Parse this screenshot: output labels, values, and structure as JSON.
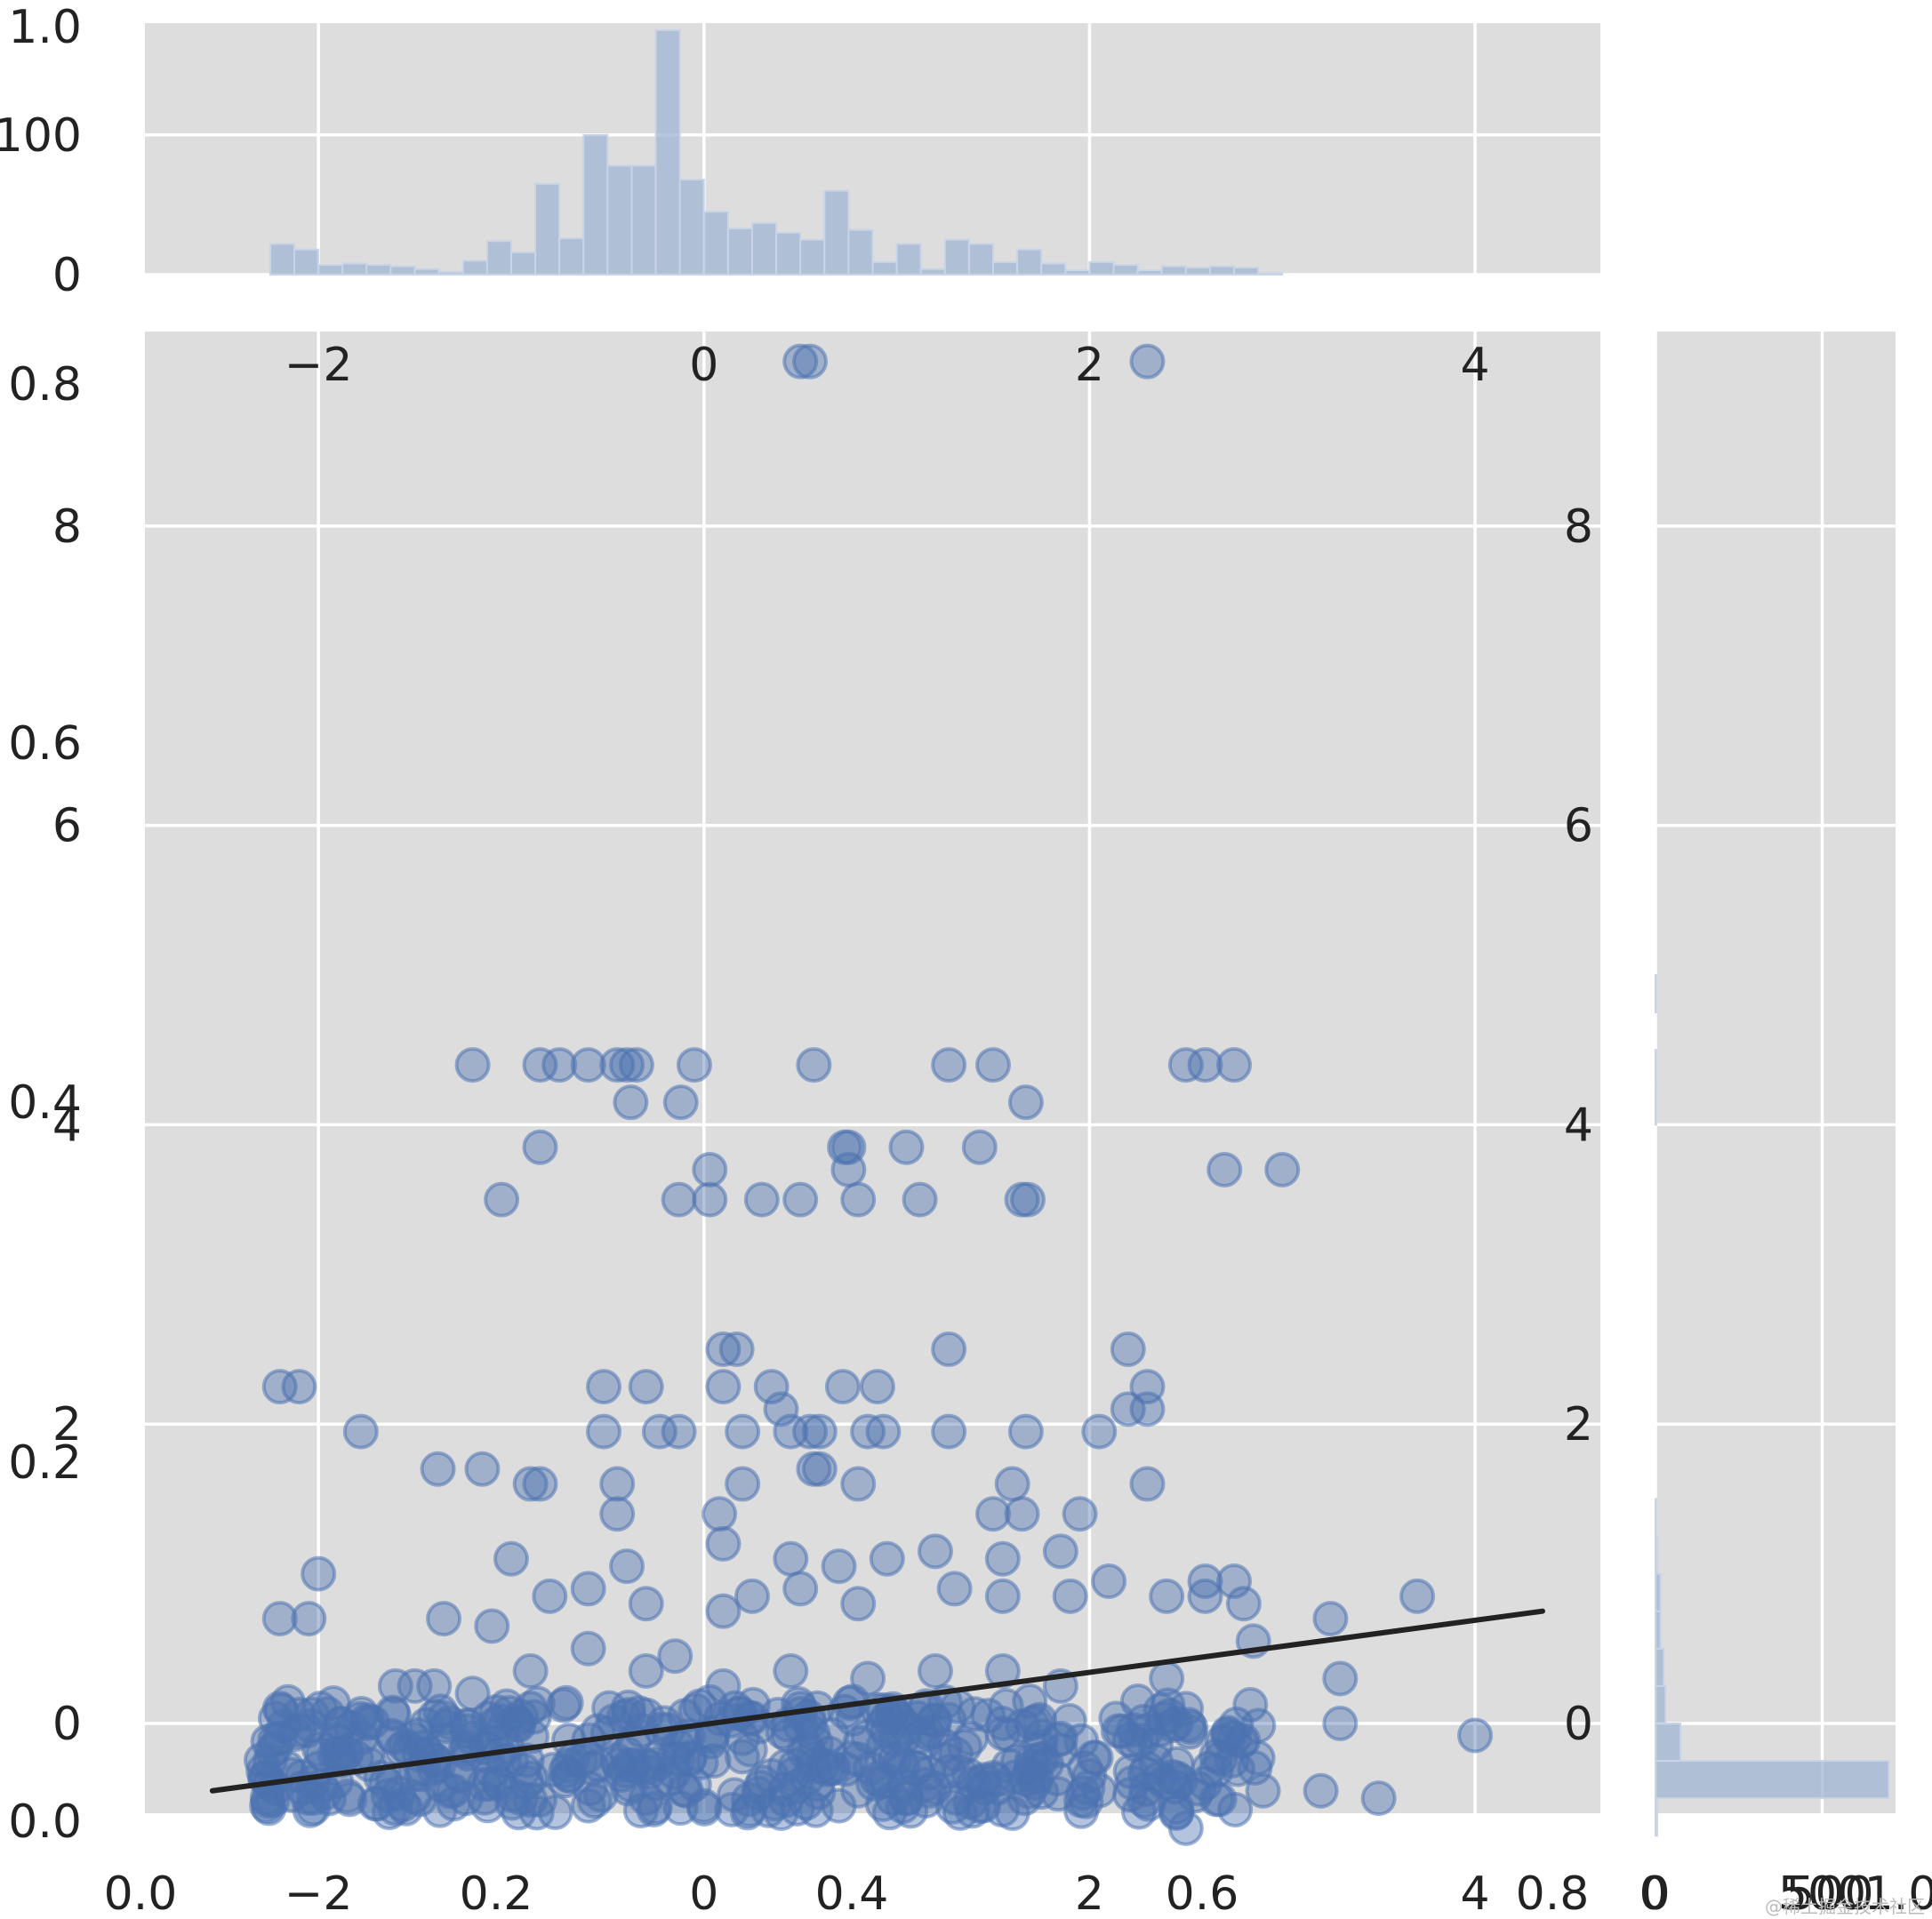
{
  "chart_data": {
    "type": "scatter",
    "title": "",
    "xlabel": "",
    "ylabel": "",
    "legend": "none",
    "grid": true,
    "xlim": [
      -2.9,
      4.65
    ],
    "ylim": [
      -0.6,
      9.3
    ],
    "x_ticks": [
      "−2",
      "0",
      "2",
      "4"
    ],
    "x_tick_values": [
      -2,
      0,
      2,
      4
    ],
    "y_ticks": [
      "0",
      "2",
      "4",
      "6",
      "8"
    ],
    "y_tick_values": [
      0,
      2,
      4,
      6,
      8
    ],
    "overlay_ticks": {
      "left_axis": [
        "0.0",
        "0.2",
        "0.4",
        "0.6",
        "0.8",
        "1.0"
      ],
      "bottom_axis": [
        "0.0",
        "0.2",
        "0.4",
        "0.6",
        "0.8"
      ],
      "right_axis": [
        "0",
        "500",
        "1.0"
      ]
    },
    "scatter_points": [
      [
        0.5,
        9.1
      ],
      [
        0.55,
        9.1
      ],
      [
        2.3,
        9.1
      ],
      [
        -1.2,
        4.4
      ],
      [
        -0.85,
        4.4
      ],
      [
        -0.75,
        4.4
      ],
      [
        -0.6,
        4.4
      ],
      [
        -0.45,
        4.4
      ],
      [
        -0.4,
        4.4
      ],
      [
        -0.35,
        4.4
      ],
      [
        -0.05,
        4.4
      ],
      [
        0.57,
        4.4
      ],
      [
        1.27,
        4.4
      ],
      [
        1.5,
        4.4
      ],
      [
        2.5,
        4.4
      ],
      [
        2.6,
        4.4
      ],
      [
        2.75,
        4.4
      ],
      [
        -0.38,
        4.15
      ],
      [
        -0.12,
        4.15
      ],
      [
        1.67,
        4.15
      ],
      [
        -0.85,
        3.85
      ],
      [
        0.73,
        3.85
      ],
      [
        0.75,
        3.85
      ],
      [
        1.05,
        3.85
      ],
      [
        1.43,
        3.85
      ],
      [
        0.03,
        3.7
      ],
      [
        0.75,
        3.7
      ],
      [
        2.7,
        3.7
      ],
      [
        3.0,
        3.7
      ],
      [
        -1.05,
        3.5
      ],
      [
        -0.13,
        3.5
      ],
      [
        0.03,
        3.5
      ],
      [
        0.3,
        3.5
      ],
      [
        0.5,
        3.5
      ],
      [
        0.8,
        3.5
      ],
      [
        1.12,
        3.5
      ],
      [
        1.65,
        3.5
      ],
      [
        1.68,
        3.5
      ],
      [
        0.1,
        2.5
      ],
      [
        0.17,
        2.5
      ],
      [
        1.27,
        2.5
      ],
      [
        2.2,
        2.5
      ],
      [
        -2.2,
        2.25
      ],
      [
        -2.1,
        2.25
      ],
      [
        -0.52,
        2.25
      ],
      [
        -0.3,
        2.25
      ],
      [
        0.1,
        2.25
      ],
      [
        0.35,
        2.25
      ],
      [
        0.72,
        2.25
      ],
      [
        0.9,
        2.25
      ],
      [
        2.3,
        2.25
      ],
      [
        0.4,
        2.1
      ],
      [
        2.2,
        2.1
      ],
      [
        2.3,
        2.1
      ],
      [
        -1.78,
        1.95
      ],
      [
        -0.52,
        1.95
      ],
      [
        -0.23,
        1.95
      ],
      [
        -0.13,
        1.95
      ],
      [
        0.2,
        1.95
      ],
      [
        0.45,
        1.95
      ],
      [
        0.55,
        1.95
      ],
      [
        0.6,
        1.95
      ],
      [
        0.85,
        1.95
      ],
      [
        0.93,
        1.95
      ],
      [
        1.27,
        1.95
      ],
      [
        1.67,
        1.95
      ],
      [
        2.05,
        1.95
      ],
      [
        -1.38,
        1.7
      ],
      [
        -1.15,
        1.7
      ],
      [
        0.57,
        1.7
      ],
      [
        0.6,
        1.7
      ],
      [
        -0.9,
        1.6
      ],
      [
        -0.85,
        1.6
      ],
      [
        -0.45,
        1.6
      ],
      [
        0.2,
        1.6
      ],
      [
        0.8,
        1.6
      ],
      [
        1.6,
        1.6
      ],
      [
        2.3,
        1.6
      ],
      [
        -0.45,
        1.4
      ],
      [
        0.08,
        1.4
      ],
      [
        1.5,
        1.4
      ],
      [
        1.65,
        1.4
      ],
      [
        1.95,
        1.4
      ],
      [
        -2.0,
        1.0
      ],
      [
        -1.0,
        1.1
      ],
      [
        -0.4,
        1.05
      ],
      [
        0.1,
        1.2
      ],
      [
        0.45,
        1.1
      ],
      [
        0.7,
        1.05
      ],
      [
        0.95,
        1.1
      ],
      [
        1.2,
        1.15
      ],
      [
        1.55,
        1.1
      ],
      [
        1.85,
        1.15
      ],
      [
        2.1,
        0.95
      ],
      [
        2.6,
        0.95
      ],
      [
        2.75,
        0.95
      ],
      [
        -2.2,
        0.7
      ],
      [
        -2.05,
        0.7
      ],
      [
        -1.35,
        0.7
      ],
      [
        -1.1,
        0.65
      ],
      [
        -0.8,
        0.85
      ],
      [
        -0.6,
        0.9
      ],
      [
        -0.3,
        0.8
      ],
      [
        0.1,
        0.75
      ],
      [
        0.25,
        0.85
      ],
      [
        0.5,
        0.9
      ],
      [
        0.8,
        0.8
      ],
      [
        1.3,
        0.9
      ],
      [
        1.55,
        0.85
      ],
      [
        1.9,
        0.85
      ],
      [
        2.4,
        0.85
      ],
      [
        2.6,
        0.85
      ],
      [
        2.8,
        0.8
      ],
      [
        3.25,
        0.7
      ],
      [
        3.7,
        0.85
      ],
      [
        -1.6,
        0.25
      ],
      [
        -1.5,
        0.25
      ],
      [
        -1.4,
        0.25
      ],
      [
        -1.2,
        0.2
      ],
      [
        -0.9,
        0.35
      ],
      [
        -0.6,
        0.5
      ],
      [
        -0.3,
        0.35
      ],
      [
        -0.15,
        0.45
      ],
      [
        0.1,
        0.25
      ],
      [
        0.45,
        0.35
      ],
      [
        0.85,
        0.3
      ],
      [
        1.2,
        0.35
      ],
      [
        1.55,
        0.35
      ],
      [
        1.85,
        0.25
      ],
      [
        2.4,
        0.3
      ],
      [
        2.85,
        0.55
      ],
      [
        3.3,
        0.3
      ],
      [
        3.3,
        0.0
      ],
      [
        4.0,
        -0.08
      ],
      [
        -2.2,
        0.1
      ],
      [
        -2.1,
        -0.05
      ],
      [
        -1.9,
        -0.2
      ],
      [
        -1.75,
        0.0
      ],
      [
        -1.55,
        -0.15
      ],
      [
        -1.4,
        -0.3
      ],
      [
        -1.2,
        -0.1
      ],
      [
        -1.0,
        -0.25
      ],
      [
        -0.9,
        0.1
      ],
      [
        -0.7,
        -0.35
      ],
      [
        -0.55,
        -0.05
      ],
      [
        -0.4,
        -0.2
      ],
      [
        -0.25,
        -0.4
      ],
      [
        -0.1,
        0.05
      ],
      [
        0.05,
        -0.25
      ],
      [
        0.2,
        -0.1
      ],
      [
        0.35,
        -0.35
      ],
      [
        0.5,
        0.1
      ],
      [
        0.65,
        -0.2
      ],
      [
        0.8,
        -0.45
      ],
      [
        0.95,
        -0.05
      ],
      [
        1.1,
        -0.3
      ],
      [
        1.25,
        -0.15
      ],
      [
        1.4,
        -0.4
      ],
      [
        1.55,
        0.0
      ],
      [
        1.7,
        -0.25
      ],
      [
        1.85,
        -0.1
      ],
      [
        2.0,
        -0.35
      ],
      [
        2.15,
        -0.05
      ],
      [
        2.3,
        -0.3
      ],
      [
        2.45,
        0.0
      ],
      [
        2.6,
        -0.4
      ],
      [
        2.75,
        -0.1
      ],
      [
        2.9,
        -0.45
      ],
      [
        3.2,
        -0.45
      ],
      [
        3.5,
        -0.5
      ],
      [
        -2.25,
        -0.25
      ],
      [
        -2.0,
        -0.3
      ],
      [
        -1.65,
        -0.4
      ],
      [
        -1.3,
        -0.45
      ],
      [
        -0.95,
        -0.5
      ],
      [
        -0.6,
        -0.55
      ],
      [
        -0.3,
        -0.5
      ],
      [
        0.0,
        -0.55
      ],
      [
        0.4,
        -0.6
      ],
      [
        0.7,
        -0.55
      ],
      [
        1.05,
        -0.5
      ],
      [
        1.45,
        -0.55
      ],
      [
        1.6,
        -0.6
      ],
      [
        2.45,
        -0.6
      ],
      [
        2.5,
        -0.7
      ]
    ],
    "dense_band": {
      "x_range": [
        -2.3,
        2.9
      ],
      "y_range": [
        -0.6,
        0.15
      ],
      "approx_count": 450
    },
    "regression_line": {
      "x": [
        -2.55,
        4.35
      ],
      "y": [
        -0.45,
        0.75
      ]
    },
    "top_marginal_hist": {
      "y_ticks": [
        "0",
        "100"
      ],
      "y_tick_values": [
        0,
        100
      ],
      "ylim": [
        0,
        180
      ],
      "bin_start": -2.25,
      "bin_width": 0.125,
      "counts": [
        22,
        18,
        7,
        8,
        7,
        6,
        4,
        2,
        10,
        24,
        16,
        65,
        26,
        100,
        78,
        78,
        175,
        68,
        45,
        33,
        37,
        30,
        25,
        60,
        32,
        9,
        22,
        4,
        25,
        22,
        9,
        18,
        8,
        3,
        9,
        7,
        3,
        6,
        5,
        6,
        5,
        1
      ]
    },
    "right_marginal_hist": {
      "x_ticks": [
        "0",
        "500"
      ],
      "x_tick_values": [
        0,
        500
      ],
      "xlim": [
        0,
        720
      ],
      "bin_start": -0.75,
      "bin_height": 0.25,
      "counts": [
        5,
        700,
        75,
        30,
        25,
        15,
        15,
        5,
        2,
        0,
        0,
        0,
        0,
        0,
        0,
        0,
        0,
        0,
        0,
        2,
        2,
        0,
        2
      ]
    }
  },
  "watermark": "@稀土掘金技术社区"
}
